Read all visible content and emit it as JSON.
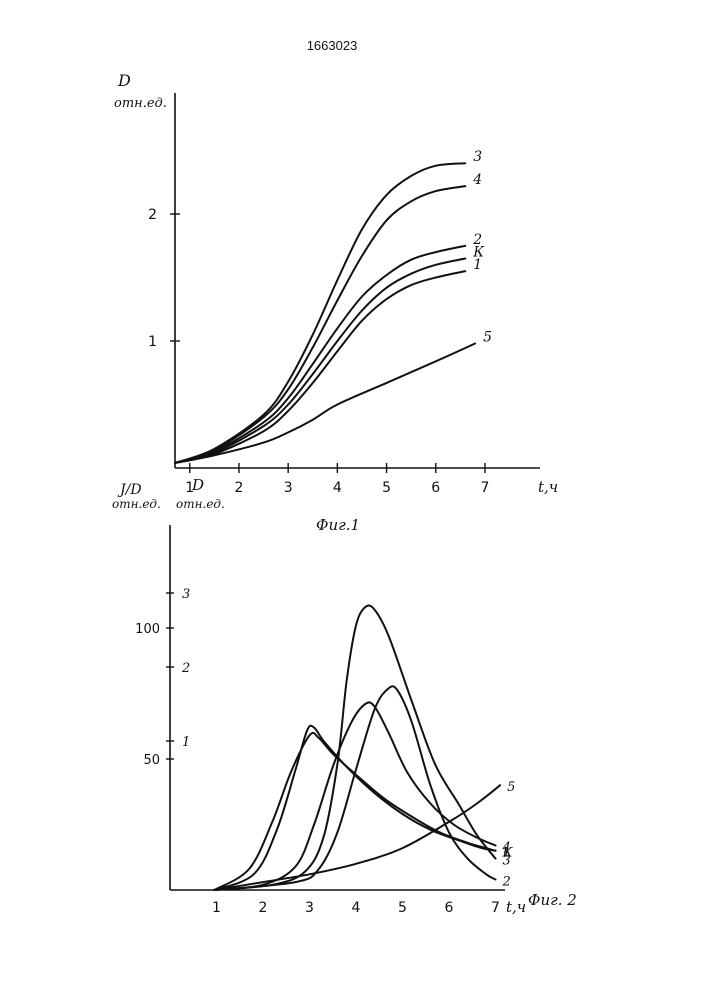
{
  "document": {
    "patent_number": "1663023"
  },
  "chart_data": [
    {
      "type": "line",
      "figure_label": "Фиг.1",
      "ylabel_symbol": "D",
      "ylabel_unit": "отн.ед.",
      "xlabel": "t,ч",
      "x_ticks": [
        1,
        2,
        3,
        4,
        5,
        6,
        7
      ],
      "x_tick_labels": [
        "1",
        "2",
        "3",
        "4",
        "5",
        "6",
        "7"
      ],
      "y_ticks": [
        1,
        2
      ],
      "y_tick_labels": [
        "1",
        "2"
      ],
      "xlim": [
        0.7,
        7.4
      ],
      "ylim": [
        0,
        2.9
      ],
      "series": [
        {
          "name": "3",
          "points": [
            [
              0.7,
              0.04
            ],
            [
              1.5,
              0.15
            ],
            [
              2.5,
              0.42
            ],
            [
              3.0,
              0.68
            ],
            [
              3.5,
              1.05
            ],
            [
              4.0,
              1.48
            ],
            [
              4.5,
              1.88
            ],
            [
              5.0,
              2.15
            ],
            [
              5.5,
              2.3
            ],
            [
              6.0,
              2.38
            ],
            [
              6.6,
              2.4
            ]
          ]
        },
        {
          "name": "4",
          "points": [
            [
              0.7,
              0.04
            ],
            [
              1.5,
              0.14
            ],
            [
              2.5,
              0.4
            ],
            [
              3.0,
              0.62
            ],
            [
              3.5,
              0.95
            ],
            [
              4.0,
              1.32
            ],
            [
              4.5,
              1.67
            ],
            [
              5.0,
              1.95
            ],
            [
              5.5,
              2.1
            ],
            [
              6.0,
              2.18
            ],
            [
              6.6,
              2.22
            ]
          ]
        },
        {
          "name": "2",
          "points": [
            [
              0.7,
              0.04
            ],
            [
              1.5,
              0.13
            ],
            [
              2.5,
              0.36
            ],
            [
              3.0,
              0.55
            ],
            [
              3.5,
              0.82
            ],
            [
              4.0,
              1.1
            ],
            [
              4.5,
              1.35
            ],
            [
              5.0,
              1.52
            ],
            [
              5.5,
              1.64
            ],
            [
              6.0,
              1.7
            ],
            [
              6.6,
              1.75
            ]
          ]
        },
        {
          "name": "К",
          "points": [
            [
              0.7,
              0.04
            ],
            [
              1.5,
              0.12
            ],
            [
              2.5,
              0.33
            ],
            [
              3.0,
              0.5
            ],
            [
              3.5,
              0.74
            ],
            [
              4.0,
              1.0
            ],
            [
              4.5,
              1.24
            ],
            [
              5.0,
              1.42
            ],
            [
              5.5,
              1.53
            ],
            [
              6.0,
              1.6
            ],
            [
              6.6,
              1.65
            ]
          ]
        },
        {
          "name": "1",
          "points": [
            [
              0.7,
              0.04
            ],
            [
              1.5,
              0.11
            ],
            [
              2.5,
              0.29
            ],
            [
              3.0,
              0.45
            ],
            [
              3.5,
              0.67
            ],
            [
              4.0,
              0.92
            ],
            [
              4.5,
              1.16
            ],
            [
              5.0,
              1.33
            ],
            [
              5.5,
              1.44
            ],
            [
              6.0,
              1.5
            ],
            [
              6.6,
              1.55
            ]
          ]
        },
        {
          "name": "5",
          "points": [
            [
              0.7,
              0.04
            ],
            [
              1.5,
              0.1
            ],
            [
              2.5,
              0.2
            ],
            [
              3.0,
              0.28
            ],
            [
              3.5,
              0.38
            ],
            [
              4.0,
              0.5
            ],
            [
              5.0,
              0.67
            ],
            [
              6.0,
              0.84
            ],
            [
              6.8,
              0.98
            ]
          ]
        }
      ]
    },
    {
      "type": "line",
      "figure_label": "Фиг. 2",
      "ylabel_symbol": "J/D",
      "ylabel_unit": "отн.ед.",
      "ylabel2_symbol": "D",
      "ylabel2_unit": "отн.ед.",
      "xlabel": "t,ч",
      "x_ticks": [
        1,
        2,
        3,
        4,
        5,
        6,
        7
      ],
      "x_tick_labels": [
        "1",
        "2",
        "3",
        "4",
        "5",
        "6",
        "7"
      ],
      "y_ticks": [
        50,
        100
      ],
      "y_tick_labels": [
        "50",
        "100"
      ],
      "y2_ticks": [
        1,
        2,
        3
      ],
      "y2_tick_labels": [
        "1",
        "2",
        "3"
      ],
      "xlim": [
        0.0,
        7.4
      ],
      "ylim": [
        0,
        135
      ],
      "series": [
        {
          "name": "3",
          "points": [
            [
              0.95,
              0
            ],
            [
              2.2,
              2
            ],
            [
              2.9,
              7
            ],
            [
              3.3,
              20
            ],
            [
              3.6,
              48
            ],
            [
              3.8,
              80
            ],
            [
              4.0,
              101
            ],
            [
              4.2,
              108
            ],
            [
              4.4,
              107
            ],
            [
              4.7,
              97
            ],
            [
              5.2,
              72
            ],
            [
              5.7,
              48
            ],
            [
              6.2,
              33
            ],
            [
              6.6,
              21
            ],
            [
              7.0,
              12
            ]
          ]
        },
        {
          "name": "4",
          "points": [
            [
              0.95,
              0
            ],
            [
              2.0,
              2
            ],
            [
              2.7,
              9
            ],
            [
              3.1,
              25
            ],
            [
              3.5,
              47
            ],
            [
              3.9,
              64
            ],
            [
              4.2,
              71
            ],
            [
              4.4,
              70
            ],
            [
              4.7,
              60
            ],
            [
              5.1,
              45
            ],
            [
              5.6,
              33
            ],
            [
              6.1,
              25
            ],
            [
              6.6,
              20
            ],
            [
              7.0,
              17
            ]
          ]
        },
        {
          "name": "К",
          "points": [
            [
              0.95,
              0
            ],
            [
              1.8,
              6
            ],
            [
              2.3,
              23
            ],
            [
              2.7,
              46
            ],
            [
              2.95,
              61
            ],
            [
              3.1,
              62
            ],
            [
              3.3,
              57
            ],
            [
              3.8,
              47
            ],
            [
              4.4,
              37
            ],
            [
              5.0,
              29
            ],
            [
              5.6,
              23
            ],
            [
              6.2,
              19
            ],
            [
              6.7,
              16
            ],
            [
              7.0,
              15
            ]
          ]
        },
        {
          "name": "1",
          "points": [
            [
              0.95,
              0
            ],
            [
              1.7,
              8
            ],
            [
              2.2,
              26
            ],
            [
              2.6,
              45
            ],
            [
              3.0,
              59
            ],
            [
              3.2,
              58
            ],
            [
              3.5,
              52
            ],
            [
              4.0,
              44
            ],
            [
              4.6,
              35
            ],
            [
              5.2,
              28
            ],
            [
              5.8,
              22
            ],
            [
              6.4,
              18
            ],
            [
              6.8,
              16
            ],
            [
              7.0,
              15
            ]
          ]
        },
        {
          "name": "2",
          "points": [
            [
              0.95,
              0
            ],
            [
              2.7,
              3
            ],
            [
              3.2,
              8
            ],
            [
              3.6,
              22
            ],
            [
              4.0,
              46
            ],
            [
              4.4,
              69
            ],
            [
              4.7,
              77
            ],
            [
              4.9,
              76
            ],
            [
              5.2,
              64
            ],
            [
              5.6,
              40
            ],
            [
              6.0,
              22
            ],
            [
              6.4,
              12
            ],
            [
              6.8,
              6
            ],
            [
              7.0,
              4
            ]
          ]
        },
        {
          "name": "5",
          "points": [
            [
              0.95,
              0
            ],
            [
              2.0,
              3
            ],
            [
              3.0,
              6
            ],
            [
              4.0,
              10
            ],
            [
              5.0,
              16
            ],
            [
              6.0,
              26
            ],
            [
              6.6,
              33
            ],
            [
              7.1,
              40
            ]
          ]
        }
      ]
    }
  ]
}
